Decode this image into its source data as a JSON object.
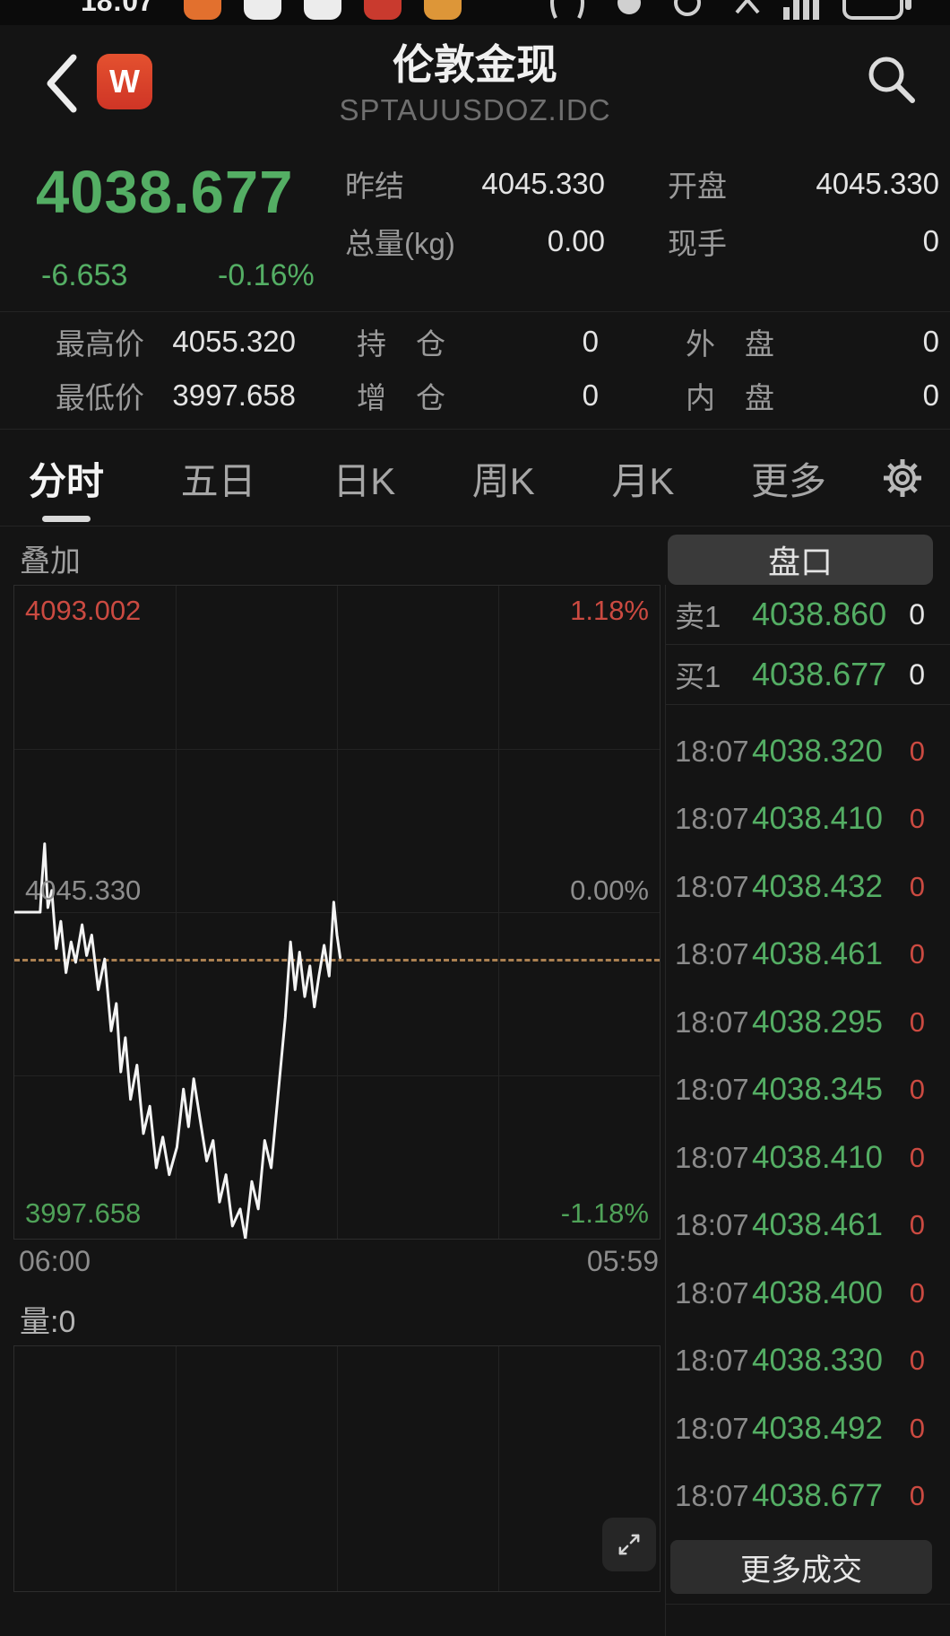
{
  "colors": {
    "green": "#54ae64",
    "red": "#cb4a41",
    "text": "#e4e4e4",
    "text_dim": "#8b8b8b",
    "label": "#9a9a9a",
    "accent_dashed": "#c6935c"
  },
  "status_bar": {
    "time": "18:07"
  },
  "header": {
    "title": "伦敦金现",
    "subtitle": "SPTAUUSDOZ.IDC",
    "badge": "W"
  },
  "quote": {
    "last": "4038.677",
    "change": "-6.653",
    "change_pct": "-0.16%",
    "stats_top": [
      {
        "label": "昨结",
        "value": "4045.330"
      },
      {
        "label": "开盘",
        "value": "4045.330"
      },
      {
        "label": "总量(kg)",
        "value": "0.00"
      },
      {
        "label": "现手",
        "value": "0"
      }
    ],
    "stats_bottom": [
      {
        "label": "最高价",
        "value": "4055.320"
      },
      {
        "label": "持　仓",
        "value": "0"
      },
      {
        "label": "外　盘",
        "value": "0"
      },
      {
        "label": "最低价",
        "value": "3997.658"
      },
      {
        "label": "增　仓",
        "value": "0"
      },
      {
        "label": "内　盘",
        "value": "0"
      }
    ]
  },
  "tabs": {
    "items": [
      "分时",
      "五日",
      "日K",
      "周K",
      "月K",
      "更多"
    ],
    "active_index": 0
  },
  "chart_ui": {
    "overlay_label": "叠加"
  },
  "chart_data": {
    "type": "line",
    "symbol": "SPTAUUSDOZ.IDC",
    "session": {
      "start": "06:00",
      "end": "05:59"
    },
    "prev_close": 4045.33,
    "last_price": 4038.677,
    "high": 4055.32,
    "low": 3997.658,
    "ylim": [
      3997.658,
      4093.002
    ],
    "y_labels": {
      "top": {
        "price": "4093.002",
        "pct": "1.18%"
      },
      "mid": {
        "price": "4045.330",
        "pct": "0.00%"
      },
      "bottom": {
        "price": "3997.658",
        "pct": "-1.18%"
      }
    },
    "x_tick_labels": [
      "06:00",
      "05:59"
    ],
    "grid": {
      "v_divisions": 4,
      "h_divisions": 4
    },
    "volume": {
      "label": "量:0",
      "values": []
    },
    "series": [
      {
        "name": "price",
        "x_frac": [
          0.0,
          0.04,
          0.043,
          0.047,
          0.052,
          0.058,
          0.065,
          0.072,
          0.08,
          0.088,
          0.095,
          0.105,
          0.112,
          0.12,
          0.13,
          0.14,
          0.15,
          0.158,
          0.165,
          0.172,
          0.18,
          0.19,
          0.2,
          0.21,
          0.22,
          0.23,
          0.24,
          0.252,
          0.262,
          0.27,
          0.278,
          0.288,
          0.298,
          0.308,
          0.318,
          0.328,
          0.338,
          0.35,
          0.358,
          0.368,
          0.378,
          0.388,
          0.398,
          0.408,
          0.42,
          0.428,
          0.435,
          0.442,
          0.45,
          0.458,
          0.465,
          0.472,
          0.48,
          0.488,
          0.495,
          0.5,
          0.505
        ],
        "values": [
          4045.33,
          4045.33,
          4050.0,
          4055.32,
          4046.0,
          4048.5,
          4040.0,
          4044.0,
          4036.5,
          4041.0,
          4038.0,
          4043.5,
          4039.0,
          4042.0,
          4034.0,
          4038.5,
          4028.0,
          4032.0,
          4022.0,
          4027.0,
          4018.0,
          4023.0,
          4013.0,
          4017.0,
          4008.0,
          4012.5,
          4007.0,
          4011.0,
          4019.5,
          4014.0,
          4021.0,
          4015.0,
          4009.0,
          4012.0,
          4003.0,
          4007.0,
          3999.5,
          4002.0,
          3997.66,
          4006.0,
          4002.0,
          4012.0,
          4008.0,
          4018.0,
          4030.0,
          4041.0,
          4034.0,
          4039.5,
          4033.0,
          4037.5,
          4031.5,
          4036.0,
          4040.5,
          4036.0,
          4046.8,
          4042.0,
          4038.677
        ]
      }
    ]
  },
  "order_book": {
    "title": "盘口",
    "rows": [
      {
        "label": "卖1",
        "price": "4038.860",
        "qty": "0"
      },
      {
        "label": "买1",
        "price": "4038.677",
        "qty": "0"
      }
    ]
  },
  "trades": {
    "rows": [
      {
        "time": "18:07",
        "price": "4038.320",
        "qty": "0"
      },
      {
        "time": "18:07",
        "price": "4038.410",
        "qty": "0"
      },
      {
        "time": "18:07",
        "price": "4038.432",
        "qty": "0"
      },
      {
        "time": "18:07",
        "price": "4038.461",
        "qty": "0"
      },
      {
        "time": "18:07",
        "price": "4038.295",
        "qty": "0"
      },
      {
        "time": "18:07",
        "price": "4038.345",
        "qty": "0"
      },
      {
        "time": "18:07",
        "price": "4038.410",
        "qty": "0"
      },
      {
        "time": "18:07",
        "price": "4038.461",
        "qty": "0"
      },
      {
        "time": "18:07",
        "price": "4038.400",
        "qty": "0"
      },
      {
        "time": "18:07",
        "price": "4038.330",
        "qty": "0"
      },
      {
        "time": "18:07",
        "price": "4038.492",
        "qty": "0"
      },
      {
        "time": "18:07",
        "price": "4038.677",
        "qty": "0"
      }
    ],
    "more_label": "更多成交"
  }
}
